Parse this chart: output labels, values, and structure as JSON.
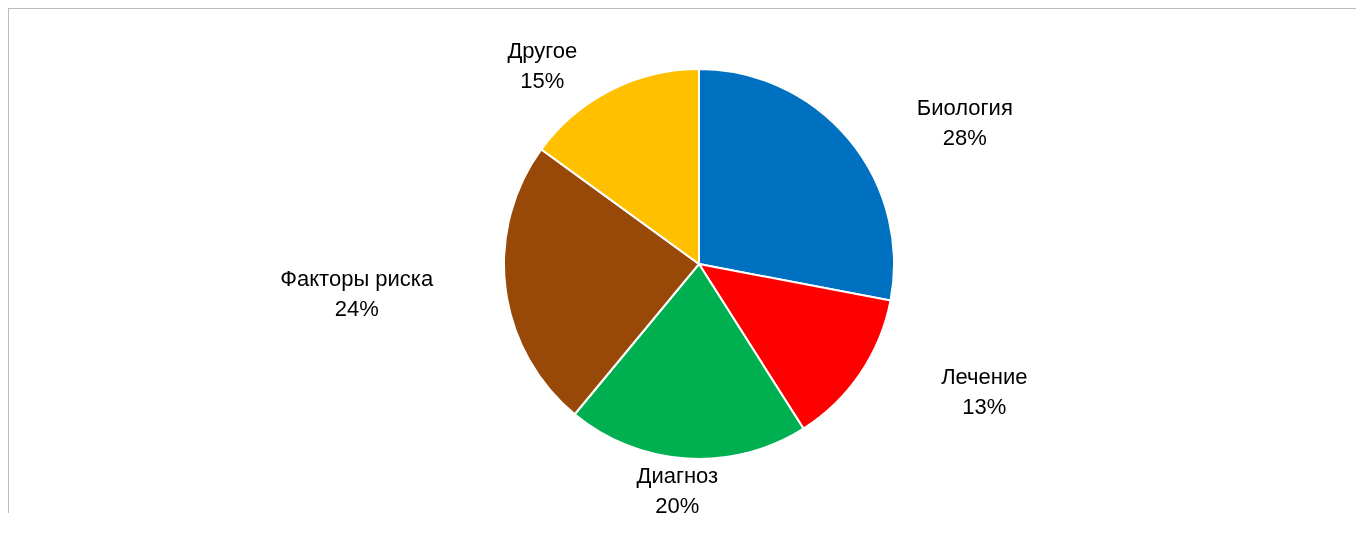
{
  "chart_data": {
    "type": "pie",
    "categories": [
      "Биология",
      "Лечение",
      "Диагноз",
      "Факторы риска",
      "Другое"
    ],
    "values": [
      28,
      13,
      20,
      24,
      15
    ],
    "colors": [
      "#0070c0",
      "#ff0000",
      "#00b050",
      "#984807",
      "#ffc000"
    ],
    "value_labels": [
      "28%",
      "13%",
      "20%",
      "24%",
      "15%"
    ]
  }
}
